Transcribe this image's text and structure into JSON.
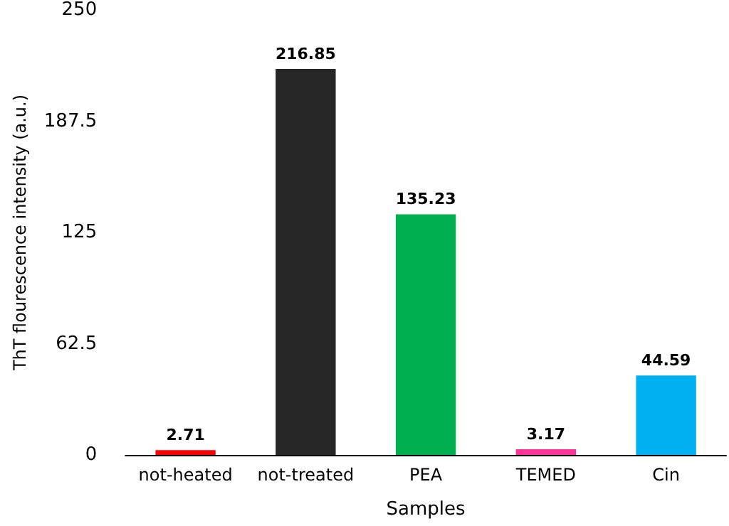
{
  "chart_data": {
    "type": "bar",
    "xlabel": "Samples",
    "ylabel": "ThT flourescence intensity (a.u.)",
    "categories": [
      "not-heated",
      "not-treated",
      "PEA",
      "TEMED",
      "Cin"
    ],
    "values": [
      2.71,
      216.85,
      135.23,
      3.17,
      44.59
    ],
    "colors": [
      "#ff0000",
      "#262626",
      "#00b050",
      "#ff3399",
      "#00b0f0"
    ],
    "ylim": [
      0,
      250
    ],
    "yticks": [
      0,
      62.5,
      125,
      187.5,
      250
    ],
    "grid": false,
    "data_labels": true
  }
}
